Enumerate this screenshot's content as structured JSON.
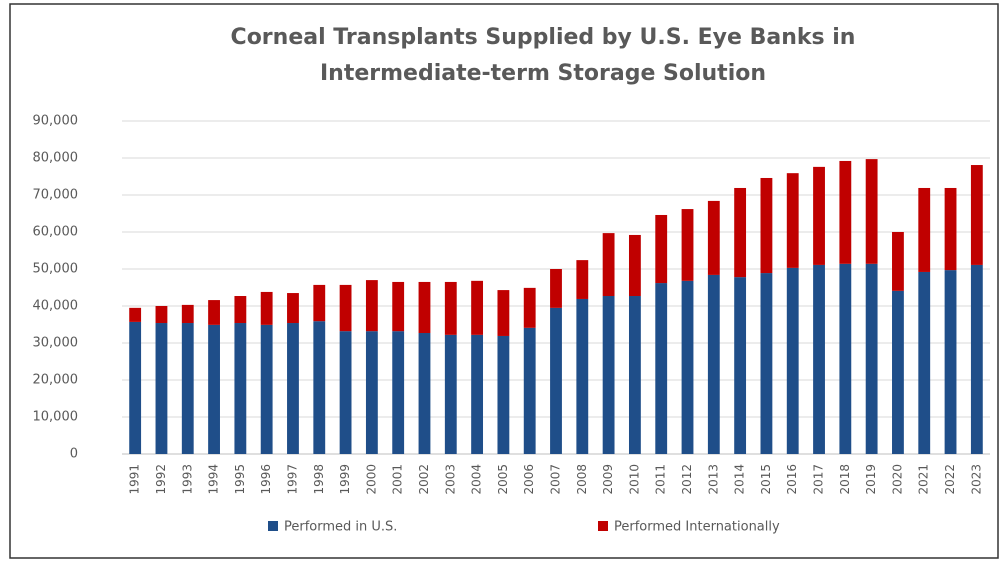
{
  "chart_data": {
    "type": "stacked_bar",
    "title": "Corneal Transplants Supplied by U.S. Eye Banks in Intermediate-term Storage Solution",
    "categories": [
      "1991",
      "1992",
      "1993",
      "1994",
      "1995",
      "1996",
      "1997",
      "1998",
      "1999",
      "2000",
      "2001",
      "2002",
      "2003",
      "2004",
      "2005",
      "2006",
      "2007",
      "2008",
      "2009",
      "2010",
      "2011",
      "2012",
      "2013",
      "2014",
      "2015",
      "2016",
      "2017",
      "2018",
      "2019",
      "2020",
      "2021",
      "2022",
      "2023"
    ],
    "series": [
      {
        "name": "Performed in U.S.",
        "color": "#1f4e89",
        "values": [
          35700,
          35400,
          35400,
          34900,
          35400,
          34900,
          35400,
          35900,
          33200,
          33200,
          33200,
          32700,
          32200,
          32200,
          31900,
          34100,
          39500,
          41900,
          42700,
          42700,
          46200,
          46800,
          48400,
          47800,
          48900,
          50300,
          51100,
          51400,
          51400,
          44100,
          49200,
          49700,
          51100
        ]
      },
      {
        "name": "Performed Internationally",
        "color": "#c00000",
        "values": [
          3800,
          4600,
          4900,
          6700,
          7300,
          8900,
          8100,
          9800,
          12500,
          13800,
          13300,
          13800,
          14300,
          14600,
          12400,
          10800,
          10500,
          10500,
          17000,
          16500,
          18400,
          19400,
          20000,
          24100,
          25700,
          25600,
          26500,
          27800,
          28300,
          15900,
          22700,
          22200,
          27000
        ]
      }
    ],
    "ylim": [
      0,
      90000
    ],
    "yticks": [
      0,
      {
        "value": 10000,
        "label": "10,000"
      },
      {
        "value": 20000,
        "label": "20,000"
      },
      {
        "value": 30000,
        "label": "30,000"
      },
      {
        "value": 40000,
        "label": "40,000"
      },
      {
        "value": 50000,
        "label": "50,000"
      },
      {
        "value": 60000,
        "label": "60,000"
      },
      {
        "value": 70000,
        "label": "70,000"
      },
      {
        "value": 80000,
        "label": "80,000"
      },
      {
        "value": 90000,
        "label": "90,000"
      }
    ],
    "grid": true,
    "legend": "bottom"
  }
}
